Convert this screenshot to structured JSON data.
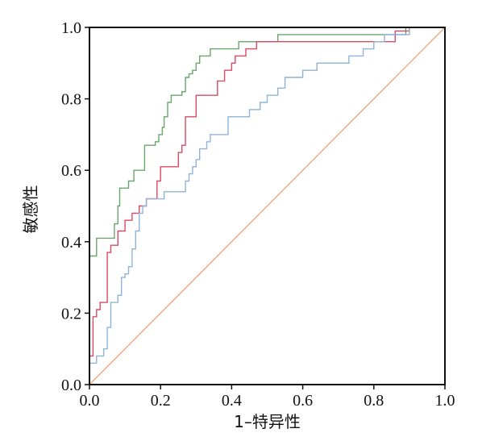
{
  "chart_data": {
    "type": "line",
    "title": "",
    "xlabel": "1–特异性",
    "ylabel": "敏感性",
    "xlim": [
      0,
      1
    ],
    "ylim": [
      0,
      1
    ],
    "xticks": [
      "0.0",
      "0.2",
      "0.4",
      "0.6",
      "0.8",
      "1.0"
    ],
    "yticks": [
      "0.0",
      "0.2",
      "0.4",
      "0.6",
      "0.8",
      "1.0"
    ],
    "grid": false,
    "legend": "none",
    "series": [
      {
        "color": "#6aa56b",
        "step": true,
        "points": [
          [
            0,
            0
          ],
          [
            0,
            0.36
          ],
          [
            0.02,
            0.36
          ],
          [
            0.02,
            0.41
          ],
          [
            0.07,
            0.41
          ],
          [
            0.07,
            0.45
          ],
          [
            0.08,
            0.45
          ],
          [
            0.08,
            0.5
          ],
          [
            0.085,
            0.5
          ],
          [
            0.085,
            0.55
          ],
          [
            0.11,
            0.55
          ],
          [
            0.11,
            0.57
          ],
          [
            0.125,
            0.57
          ],
          [
            0.125,
            0.6
          ],
          [
            0.155,
            0.6
          ],
          [
            0.155,
            0.67
          ],
          [
            0.185,
            0.67
          ],
          [
            0.185,
            0.68
          ],
          [
            0.195,
            0.68
          ],
          [
            0.195,
            0.7
          ],
          [
            0.205,
            0.7
          ],
          [
            0.205,
            0.72
          ],
          [
            0.21,
            0.72
          ],
          [
            0.21,
            0.75
          ],
          [
            0.22,
            0.75
          ],
          [
            0.22,
            0.79
          ],
          [
            0.23,
            0.79
          ],
          [
            0.23,
            0.81
          ],
          [
            0.26,
            0.81
          ],
          [
            0.26,
            0.82
          ],
          [
            0.27,
            0.82
          ],
          [
            0.27,
            0.86
          ],
          [
            0.28,
            0.86
          ],
          [
            0.28,
            0.87
          ],
          [
            0.29,
            0.87
          ],
          [
            0.29,
            0.88
          ],
          [
            0.3,
            0.88
          ],
          [
            0.3,
            0.9
          ],
          [
            0.31,
            0.9
          ],
          [
            0.31,
            0.92
          ],
          [
            0.34,
            0.92
          ],
          [
            0.34,
            0.94
          ],
          [
            0.42,
            0.94
          ],
          [
            0.42,
            0.96
          ],
          [
            0.53,
            0.96
          ],
          [
            0.53,
            0.98
          ],
          [
            0.89,
            0.98
          ],
          [
            0.89,
            1.0
          ],
          [
            1,
            1
          ]
        ]
      },
      {
        "color": "#d94b63",
        "step": true,
        "points": [
          [
            0,
            0
          ],
          [
            0,
            0.08
          ],
          [
            0.01,
            0.08
          ],
          [
            0.01,
            0.19
          ],
          [
            0.02,
            0.19
          ],
          [
            0.02,
            0.21
          ],
          [
            0.03,
            0.21
          ],
          [
            0.03,
            0.23
          ],
          [
            0.05,
            0.23
          ],
          [
            0.05,
            0.37
          ],
          [
            0.06,
            0.37
          ],
          [
            0.06,
            0.39
          ],
          [
            0.08,
            0.39
          ],
          [
            0.08,
            0.43
          ],
          [
            0.1,
            0.43
          ],
          [
            0.1,
            0.46
          ],
          [
            0.12,
            0.46
          ],
          [
            0.12,
            0.48
          ],
          [
            0.14,
            0.48
          ],
          [
            0.14,
            0.5
          ],
          [
            0.16,
            0.5
          ],
          [
            0.16,
            0.52
          ],
          [
            0.19,
            0.52
          ],
          [
            0.19,
            0.57
          ],
          [
            0.2,
            0.57
          ],
          [
            0.2,
            0.61
          ],
          [
            0.25,
            0.61
          ],
          [
            0.25,
            0.65
          ],
          [
            0.26,
            0.65
          ],
          [
            0.26,
            0.67
          ],
          [
            0.27,
            0.67
          ],
          [
            0.27,
            0.75
          ],
          [
            0.3,
            0.75
          ],
          [
            0.3,
            0.81
          ],
          [
            0.36,
            0.81
          ],
          [
            0.36,
            0.85
          ],
          [
            0.38,
            0.85
          ],
          [
            0.38,
            0.88
          ],
          [
            0.4,
            0.88
          ],
          [
            0.4,
            0.9
          ],
          [
            0.41,
            0.9
          ],
          [
            0.41,
            0.92
          ],
          [
            0.44,
            0.92
          ],
          [
            0.44,
            0.94
          ],
          [
            0.47,
            0.94
          ],
          [
            0.47,
            0.96
          ],
          [
            0.86,
            0.96
          ],
          [
            0.86,
            0.99
          ],
          [
            0.9,
            0.99
          ],
          [
            0.9,
            1.0
          ],
          [
            1,
            1
          ]
        ]
      },
      {
        "color": "#8fb3d9",
        "step": true,
        "points": [
          [
            0,
            0
          ],
          [
            0,
            0.06
          ],
          [
            0.02,
            0.06
          ],
          [
            0.02,
            0.08
          ],
          [
            0.04,
            0.08
          ],
          [
            0.04,
            0.1
          ],
          [
            0.05,
            0.1
          ],
          [
            0.05,
            0.16
          ],
          [
            0.06,
            0.16
          ],
          [
            0.06,
            0.23
          ],
          [
            0.08,
            0.23
          ],
          [
            0.08,
            0.25
          ],
          [
            0.09,
            0.25
          ],
          [
            0.09,
            0.3
          ],
          [
            0.1,
            0.3
          ],
          [
            0.1,
            0.31
          ],
          [
            0.11,
            0.31
          ],
          [
            0.11,
            0.33
          ],
          [
            0.12,
            0.33
          ],
          [
            0.12,
            0.38
          ],
          [
            0.13,
            0.38
          ],
          [
            0.13,
            0.43
          ],
          [
            0.14,
            0.43
          ],
          [
            0.14,
            0.48
          ],
          [
            0.15,
            0.48
          ],
          [
            0.15,
            0.5
          ],
          [
            0.16,
            0.5
          ],
          [
            0.16,
            0.52
          ],
          [
            0.21,
            0.52
          ],
          [
            0.21,
            0.54
          ],
          [
            0.27,
            0.54
          ],
          [
            0.27,
            0.57
          ],
          [
            0.28,
            0.57
          ],
          [
            0.28,
            0.59
          ],
          [
            0.29,
            0.59
          ],
          [
            0.29,
            0.61
          ],
          [
            0.3,
            0.61
          ],
          [
            0.3,
            0.63
          ],
          [
            0.31,
            0.63
          ],
          [
            0.31,
            0.66
          ],
          [
            0.33,
            0.66
          ],
          [
            0.33,
            0.68
          ],
          [
            0.34,
            0.68
          ],
          [
            0.34,
            0.7
          ],
          [
            0.39,
            0.7
          ],
          [
            0.39,
            0.75
          ],
          [
            0.45,
            0.75
          ],
          [
            0.45,
            0.77
          ],
          [
            0.48,
            0.77
          ],
          [
            0.48,
            0.79
          ],
          [
            0.5,
            0.79
          ],
          [
            0.5,
            0.81
          ],
          [
            0.53,
            0.81
          ],
          [
            0.53,
            0.83
          ],
          [
            0.55,
            0.83
          ],
          [
            0.55,
            0.86
          ],
          [
            0.6,
            0.86
          ],
          [
            0.6,
            0.88
          ],
          [
            0.64,
            0.88
          ],
          [
            0.64,
            0.9
          ],
          [
            0.73,
            0.9
          ],
          [
            0.73,
            0.92
          ],
          [
            0.77,
            0.92
          ],
          [
            0.77,
            0.94
          ],
          [
            0.8,
            0.94
          ],
          [
            0.8,
            0.96
          ],
          [
            0.83,
            0.96
          ],
          [
            0.83,
            0.98
          ],
          [
            0.9,
            0.98
          ],
          [
            0.9,
            1.0
          ],
          [
            1,
            1
          ]
        ]
      },
      {
        "color": "#f2a77e",
        "step": false,
        "points": [
          [
            0,
            0
          ],
          [
            1,
            1
          ]
        ]
      }
    ]
  }
}
